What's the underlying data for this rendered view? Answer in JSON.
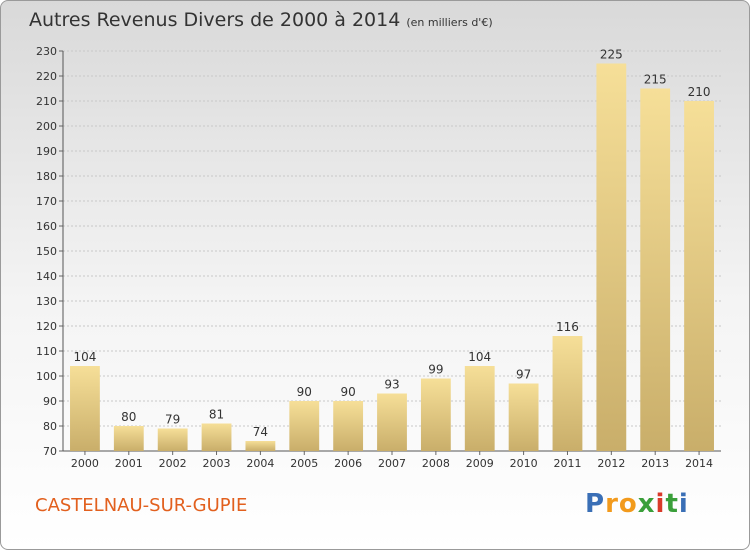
{
  "chart_data": {
    "type": "bar",
    "title": "Autres Revenus Divers de 2000 à 2014",
    "subtitle": "(en milliers d'€)",
    "categories": [
      "2000",
      "2001",
      "2002",
      "2003",
      "2004",
      "2005",
      "2006",
      "2007",
      "2008",
      "2009",
      "2010",
      "2011",
      "2012",
      "2013",
      "2014"
    ],
    "values": [
      104,
      80,
      79,
      81,
      74,
      90,
      90,
      93,
      99,
      104,
      97,
      116,
      225,
      215,
      210
    ],
    "ylim": [
      70,
      230
    ],
    "yticks": [
      70,
      80,
      90,
      100,
      110,
      120,
      130,
      140,
      150,
      160,
      170,
      180,
      190,
      200,
      210,
      220,
      230
    ],
    "grid": true,
    "bar_color": "#e8cf84"
  },
  "commune": "CASTELNAU-SUR-GUPIE",
  "logo": {
    "letters": [
      "P",
      "r",
      "o",
      "x",
      "i",
      "t",
      "i"
    ],
    "colors": [
      "#3a6fb6",
      "#f29a1c",
      "#f29a1c",
      "#3a9f3a",
      "#d93a2a",
      "#3a9f3a",
      "#3a6fb6"
    ]
  }
}
